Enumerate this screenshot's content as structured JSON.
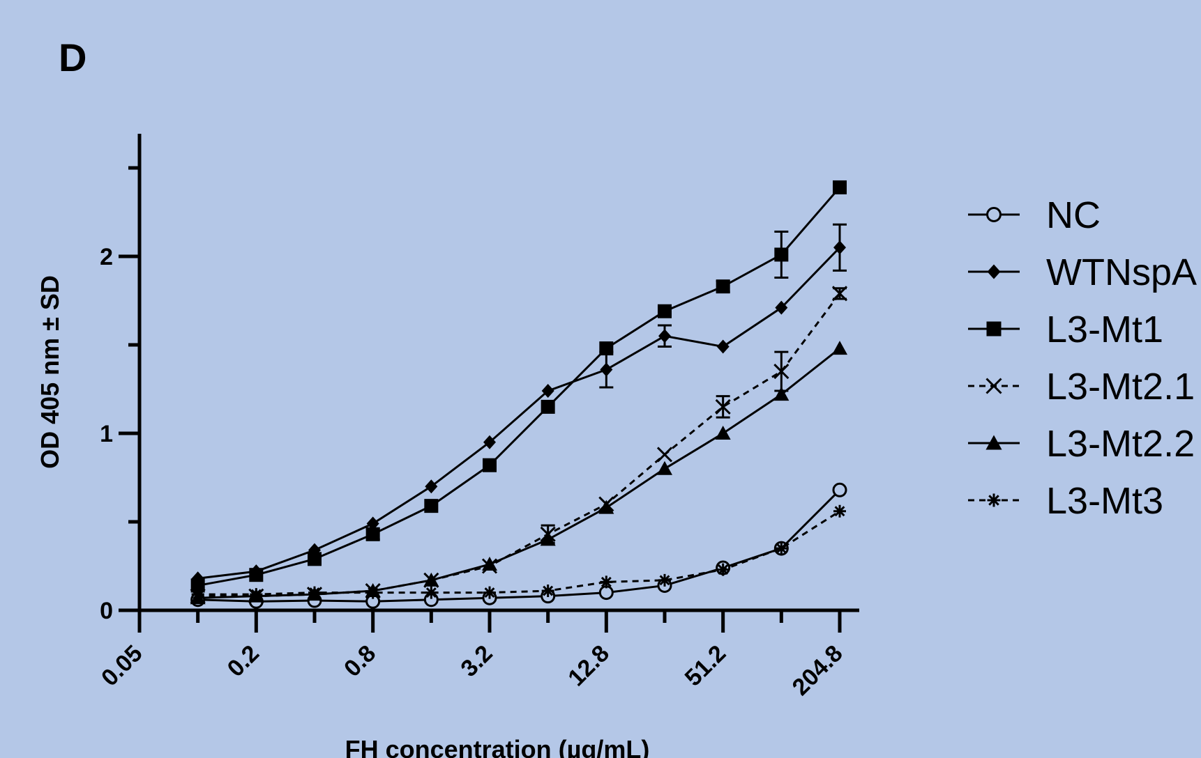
{
  "panel_label": "D",
  "chart_data": {
    "type": "line",
    "title": "",
    "xlabel": "FH concentration (µg/mL)",
    "ylabel": "OD 405 nm ± SD",
    "x_scale": "log2",
    "xlim": [
      0.05,
      204.8
    ],
    "ylim": [
      0,
      2.7
    ],
    "x_ticks": [
      0.05,
      0.2,
      0.8,
      3.2,
      12.8,
      51.2,
      204.8
    ],
    "x_tick_labels": [
      "0.05",
      "0.2",
      "0.8",
      "3.2",
      "12.8",
      "51.2",
      "204.8"
    ],
    "y_ticks": [
      0,
      1,
      2
    ],
    "y_tick_labels": [
      "0",
      "1",
      "2"
    ],
    "x": [
      0.1,
      0.2,
      0.4,
      0.8,
      1.6,
      3.2,
      6.4,
      12.8,
      25.6,
      51.2,
      102.4,
      204.8
    ],
    "legend_position": "right",
    "grid": false,
    "series": [
      {
        "name": "NC",
        "marker": "open-circle",
        "dash": "solid",
        "values": [
          0.06,
          0.05,
          0.055,
          0.05,
          0.06,
          0.07,
          0.08,
          0.1,
          0.14,
          0.24,
          0.35,
          0.68
        ],
        "errors": [
          0,
          0,
          0,
          0,
          0,
          0,
          0,
          0,
          0,
          0,
          0,
          0
        ]
      },
      {
        "name": "WTNspA",
        "marker": "filled-diamond",
        "dash": "solid",
        "values": [
          0.18,
          0.22,
          0.34,
          0.49,
          0.7,
          0.95,
          1.24,
          1.36,
          1.55,
          1.49,
          1.71,
          2.05
        ],
        "errors": [
          0,
          0,
          0,
          0,
          0,
          0,
          0,
          0.1,
          0.06,
          0,
          0,
          0.13
        ]
      },
      {
        "name": "L3-Mt1",
        "marker": "filled-square",
        "dash": "solid",
        "values": [
          0.14,
          0.2,
          0.29,
          0.43,
          0.59,
          0.82,
          1.15,
          1.48,
          1.69,
          1.83,
          2.01,
          2.39
        ],
        "errors": [
          0,
          0,
          0,
          0.03,
          0,
          0,
          0,
          0,
          0,
          0.03,
          0.13,
          0
        ]
      },
      {
        "name": "L3-Mt2.1",
        "marker": "cross",
        "dash": "dashed",
        "values": [
          0.08,
          0.08,
          0.09,
          0.11,
          0.17,
          0.25,
          0.43,
          0.6,
          0.88,
          1.15,
          1.35,
          1.79
        ],
        "errors": [
          0,
          0,
          0,
          0,
          0,
          0,
          0.05,
          0,
          0,
          0.06,
          0.11,
          0.03
        ]
      },
      {
        "name": "L3-Mt2.2",
        "marker": "filled-triangle",
        "dash": "solid",
        "values": [
          0.07,
          0.08,
          0.09,
          0.11,
          0.17,
          0.26,
          0.4,
          0.58,
          0.8,
          1.0,
          1.22,
          1.48
        ],
        "errors": [
          0,
          0,
          0,
          0,
          0,
          0,
          0,
          0,
          0,
          0,
          0,
          0
        ]
      },
      {
        "name": "L3-Mt3",
        "marker": "asterisk",
        "dash": "dashed",
        "values": [
          0.09,
          0.09,
          0.1,
          0.1,
          0.1,
          0.1,
          0.11,
          0.16,
          0.17,
          0.23,
          0.35,
          0.56
        ],
        "errors": [
          0,
          0,
          0,
          0,
          0,
          0,
          0,
          0,
          0,
          0,
          0,
          0
        ]
      }
    ]
  }
}
